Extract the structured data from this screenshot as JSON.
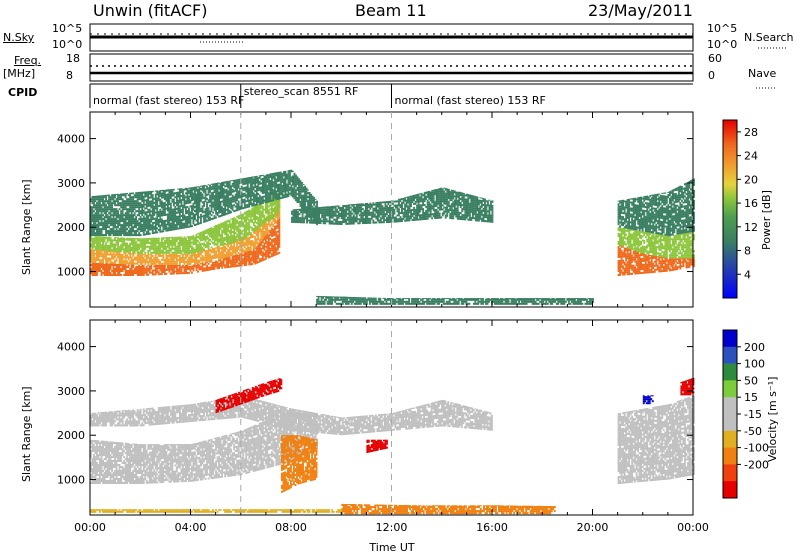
{
  "header": {
    "station": "Unwin (fitACF)",
    "beam": "Beam 11",
    "date": "23/May/2011"
  },
  "top_panels": {
    "nsky_label": "N.Sky",
    "nsky_ticks": [
      "10^5",
      "10^0"
    ],
    "nsearch_label": "N.Search",
    "nsearch_ticks": [
      "10^5",
      "10^0"
    ],
    "freq_label_1": "Freq.",
    "freq_label_2": "[MHz]",
    "freq_ticks": [
      "18",
      "8"
    ],
    "nave_label": "Nave",
    "nave_ticks": [
      "60",
      "0"
    ],
    "cpid_label": "CPID",
    "cpid_segments": [
      {
        "label": "normal (fast stereo) 153 RF",
        "start_hour": 0,
        "end_hour": 6
      },
      {
        "label": "stereo_scan 8551 RF",
        "start_hour": 6,
        "end_hour": 12
      },
      {
        "label": "normal (fast stereo) 153 RF",
        "start_hour": 12,
        "end_hour": 24
      }
    ]
  },
  "colors": {
    "power": [
      "#0000ff",
      "#2844a8",
      "#3a7f62",
      "#4fa04f",
      "#8cc63c",
      "#e6d23c",
      "#f0a030",
      "#f06a1e",
      "#e60000"
    ],
    "velocity": [
      "#0000cc",
      "#2a52be",
      "#2e8b3c",
      "#7ccd3c",
      "#c0c0c0",
      "#c0c0c0",
      "#e0b020",
      "#f08010",
      "#f04010",
      "#e60000"
    ]
  },
  "chart_data": [
    {
      "type": "heatmap",
      "name": "Power",
      "xlabel": "",
      "ylabel": "Slant Range [km]",
      "xlim": [
        0,
        24
      ],
      "ylim": [
        200,
        4600
      ],
      "yticks": [
        "1000",
        "2000",
        "3000",
        "4000"
      ],
      "colorbar_label": "Power [dB]",
      "colorbar_ticks": [
        "4",
        "8",
        "12",
        "16",
        "20",
        "24",
        "28"
      ],
      "colorbar_range": [
        0,
        30
      ],
      "bands": [
        {
          "x": [
            0,
            2,
            4,
            5,
            6.5,
            7.5
          ],
          "y_low": [
            900,
            900,
            950,
            1050,
            1150,
            1400
          ],
          "y_high": [
            1200,
            1150,
            1150,
            1250,
            1500,
            2200
          ],
          "value": 28
        },
        {
          "x": [
            0,
            2,
            4,
            5,
            6.5,
            7.5
          ],
          "y_low": [
            1200,
            1150,
            1150,
            1250,
            1500,
            2200
          ],
          "y_high": [
            1500,
            1400,
            1400,
            1550,
            1900,
            2600
          ],
          "value": 22
        },
        {
          "x": [
            0,
            2,
            4,
            6,
            7.5
          ],
          "y_low": [
            1500,
            1400,
            1400,
            1700,
            2300
          ],
          "y_high": [
            1800,
            1750,
            1800,
            2300,
            2800
          ],
          "value": 14
        },
        {
          "x": [
            0,
            2,
            4,
            6,
            8,
            9
          ],
          "y_low": [
            1800,
            1800,
            2000,
            2400,
            2700,
            2000
          ],
          "y_high": [
            2700,
            2800,
            2900,
            3100,
            3300,
            2600
          ],
          "value": 8
        },
        {
          "x": [
            8,
            10,
            12,
            14,
            16
          ],
          "y_low": [
            2100,
            2050,
            2100,
            2200,
            2100
          ],
          "y_high": [
            2400,
            2500,
            2600,
            2900,
            2600
          ],
          "value": 6
        },
        {
          "x": [
            21,
            22,
            23,
            24
          ],
          "y_low": [
            900,
            950,
            1000,
            1100
          ],
          "y_high": [
            1600,
            1400,
            1300,
            1300
          ],
          "value": 26
        },
        {
          "x": [
            21,
            22,
            23,
            24
          ],
          "y_low": [
            1600,
            1400,
            1300,
            1300
          ],
          "y_high": [
            2000,
            1900,
            1800,
            1900
          ],
          "value": 16
        },
        {
          "x": [
            21,
            22,
            23,
            24
          ],
          "y_low": [
            2000,
            1900,
            1800,
            1900
          ],
          "y_high": [
            2600,
            2700,
            2800,
            3100
          ],
          "value": 8
        },
        {
          "x": [
            9,
            12,
            15,
            18,
            20
          ],
          "y_low": [
            250,
            250,
            250,
            250,
            250
          ],
          "y_high": [
            450,
            400,
            400,
            400,
            400
          ],
          "value": 8
        }
      ]
    },
    {
      "type": "heatmap",
      "name": "Velocity",
      "xlabel": "Time UT",
      "ylabel": "Slant Range [km]",
      "xlim": [
        0,
        24
      ],
      "ylim": [
        200,
        4600
      ],
      "xticks": [
        "00:00",
        "04:00",
        "08:00",
        "12:00",
        "16:00",
        "20:00",
        "00:00"
      ],
      "yticks": [
        "1000",
        "2000",
        "3000",
        "4000"
      ],
      "colorbar_label": "Velocity [m s⁻¹]",
      "colorbar_ticks": [
        "200",
        "100",
        "50",
        "15",
        "-15",
        "-50",
        "-100",
        "-200"
      ],
      "bands": [
        {
          "x": [
            0,
            2,
            4,
            6,
            8,
            9
          ],
          "y_low": [
            900,
            900,
            950,
            1100,
            1400,
            1700
          ],
          "y_high": [
            1900,
            1800,
            1800,
            2100,
            2600,
            2500
          ],
          "value": 0
        },
        {
          "x": [
            0,
            2,
            4,
            6,
            8,
            10,
            12,
            14,
            16
          ],
          "y_low": [
            2200,
            2200,
            2300,
            2400,
            2100,
            2000,
            2100,
            2200,
            2100
          ],
          "y_high": [
            2500,
            2600,
            2700,
            2900,
            2600,
            2400,
            2500,
            2800,
            2500
          ],
          "value": 0
        },
        {
          "x": [
            21,
            22,
            23,
            24
          ],
          "y_low": [
            900,
            950,
            1000,
            1100
          ],
          "y_high": [
            2000,
            1900,
            1800,
            1900
          ],
          "value": 0
        },
        {
          "x": [
            21,
            22,
            23,
            24
          ],
          "y_low": [
            2000,
            1900,
            1800,
            1900
          ],
          "y_high": [
            2500,
            2600,
            2700,
            2900
          ],
          "value": 0
        },
        {
          "x": [
            5,
            6,
            7,
            7.6
          ],
          "y_low": [
            2500,
            2700,
            2900,
            3000
          ],
          "y_high": [
            2800,
            3000,
            3200,
            3300
          ],
          "value": -180
        },
        {
          "x": [
            7.6,
            8.3,
            9.0
          ],
          "y_low": [
            700,
            900,
            1000
          ],
          "y_high": [
            2000,
            2000,
            1900
          ],
          "value": -70
        },
        {
          "x": [
            11,
            11.8
          ],
          "y_low": [
            1600,
            1700
          ],
          "y_high": [
            1900,
            1900
          ],
          "value": -180
        },
        {
          "x": [
            10,
            13,
            16,
            18.5
          ],
          "y_low": [
            220,
            220,
            220,
            220
          ],
          "y_high": [
            450,
            420,
            420,
            400
          ],
          "value": -70
        },
        {
          "x": [
            0,
            4,
            8,
            10
          ],
          "y_low": [
            250,
            250,
            250,
            250
          ],
          "y_high": [
            330,
            330,
            330,
            330
          ],
          "value": -40
        },
        {
          "x": [
            23.5,
            24
          ],
          "y_low": [
            2900,
            2900
          ],
          "y_high": [
            3200,
            3300
          ],
          "value": -180
        },
        {
          "x": [
            22,
            22.4
          ],
          "y_low": [
            2700,
            2700
          ],
          "y_high": [
            2900,
            2900
          ],
          "value": 150
        }
      ]
    }
  ]
}
